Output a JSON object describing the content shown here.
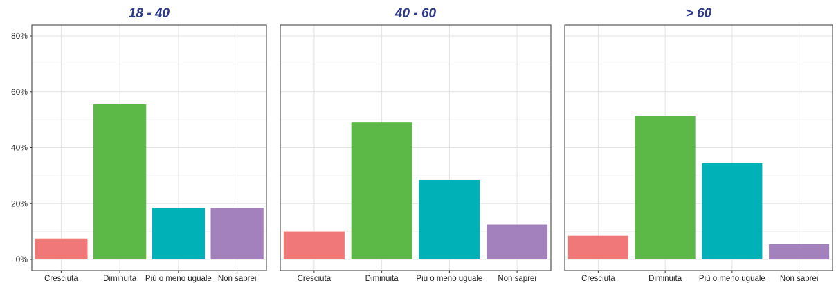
{
  "colors": {
    "title": "#2e3a87",
    "panel_border": "#333333",
    "grid_major": "#e3e3e3",
    "grid_minor": "#f2f2f2",
    "bars": [
      "#f07878",
      "#5cb947",
      "#00b1b8",
      "#a381bc"
    ]
  },
  "chart_data": [
    {
      "type": "bar",
      "title": "18 - 40",
      "categories": [
        "Cresciuta",
        "Diminuita",
        "Più o meno uguale",
        "Non saprei"
      ],
      "values": [
        7.5,
        55.5,
        18.5,
        18.5
      ],
      "ylim": [
        0,
        80
      ],
      "yticks": [
        "0%",
        "20%",
        "40%",
        "60%",
        "80%"
      ],
      "grid": true,
      "legend": "none"
    },
    {
      "type": "bar",
      "title": "40 - 60",
      "categories": [
        "Cresciuta",
        "Diminuita",
        "Più o meno uguale",
        "Non saprei"
      ],
      "values": [
        10,
        49,
        28.5,
        12.5
      ],
      "ylim": [
        0,
        80
      ],
      "grid": true,
      "legend": "none"
    },
    {
      "type": "bar",
      "title": "> 60",
      "categories": [
        "Cresciuta",
        "Diminuita",
        "Più o meno uguale",
        "Non saprei"
      ],
      "values": [
        8.5,
        51.5,
        34.5,
        5.5
      ],
      "ylim": [
        0,
        80
      ],
      "grid": true,
      "legend": "none"
    }
  ]
}
